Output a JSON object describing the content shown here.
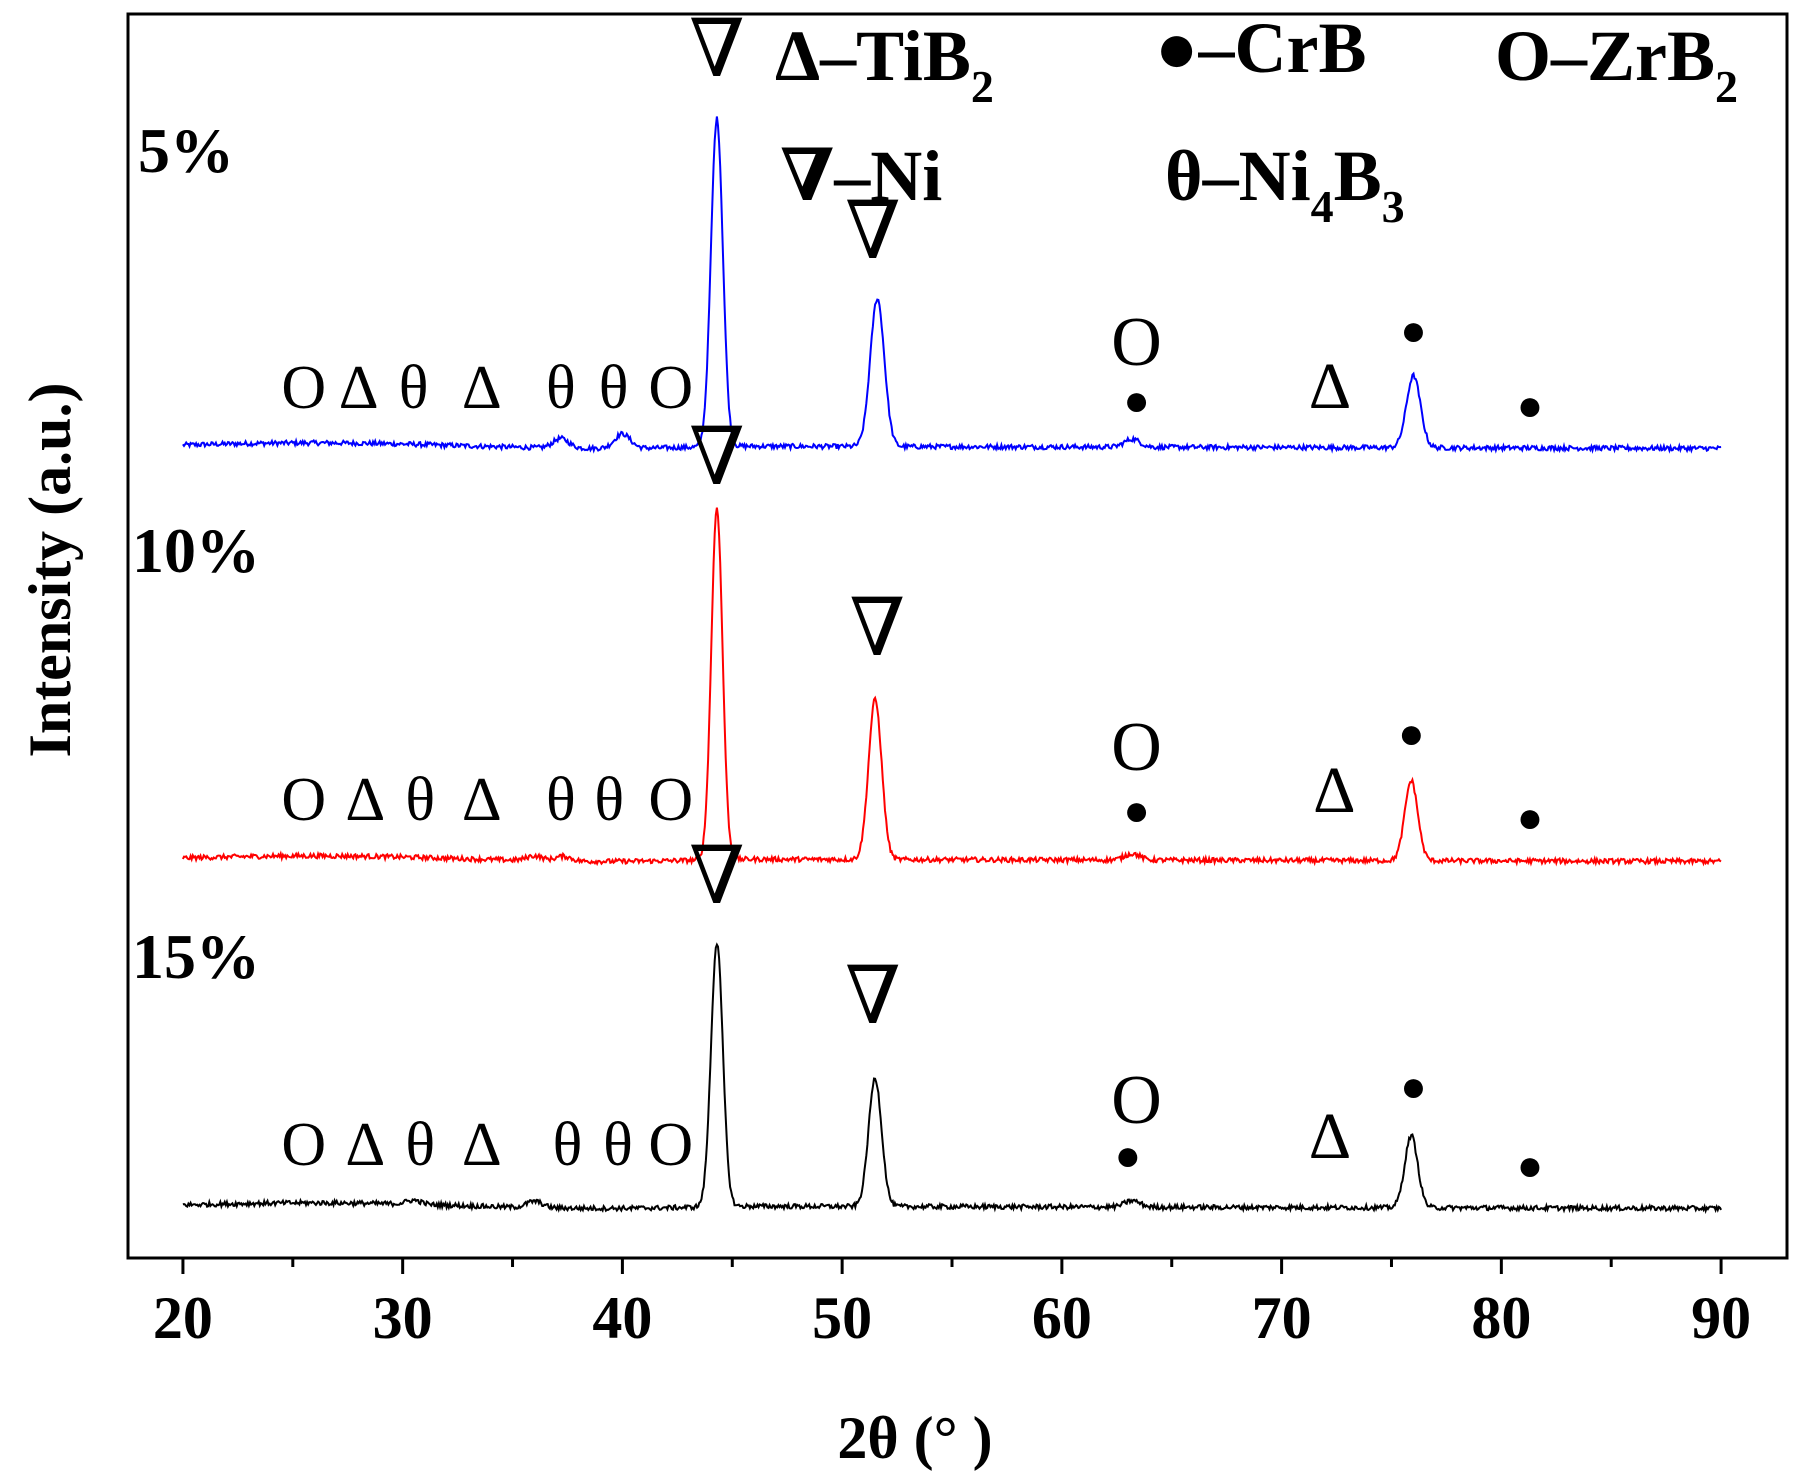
{
  "chart_data": {
    "type": "line",
    "xlabel": "2θ (° )",
    "ylabel": "Intensity (a.u.)",
    "xlim": [
      17.5,
      93
    ],
    "xticks": [
      20,
      30,
      40,
      50,
      60,
      70,
      80,
      90
    ],
    "xtick_labels": [
      "20",
      "30",
      "40",
      "50",
      "60",
      "70",
      "80",
      "90"
    ],
    "y_ticks_shown": false,
    "grid": false,
    "colors": {
      "5%": "#0000ff",
      "10%": "#ff0000",
      "15%": "#000000"
    },
    "legend": {
      "placement": "top-right",
      "entries": [
        {
          "symbol": "Δ",
          "label": "–TiB",
          "sub": "2"
        },
        {
          "symbol": "●",
          "label": "–CrB",
          "sub": ""
        },
        {
          "symbol": "O",
          "label": "–ZrB",
          "sub": "2"
        },
        {
          "symbol": "∇",
          "label": "–Ni",
          "sub": ""
        },
        {
          "symbol": "θ",
          "label": "–Ni",
          "sub": "4",
          "label2": "B",
          "sub2": "3"
        }
      ]
    },
    "series": [
      {
        "name": "5%",
        "color": "#0000ff",
        "baseline": 0,
        "peaks": [
          {
            "x": 37.2,
            "h": 0.012,
            "w": 0.5
          },
          {
            "x": 40.0,
            "h": 0.018,
            "w": 0.5
          },
          {
            "x": 44.3,
            "h": 0.41,
            "w": 0.38
          },
          {
            "x": 51.6,
            "h": 0.185,
            "w": 0.45
          },
          {
            "x": 63.2,
            "h": 0.01,
            "w": 0.5
          },
          {
            "x": 76.0,
            "h": 0.09,
            "w": 0.45
          }
        ],
        "markers": [
          {
            "x": 25.5,
            "symbol": "O"
          },
          {
            "x": 28.0,
            "symbol": "Δ"
          },
          {
            "x": 30.5,
            "symbol": "θ"
          },
          {
            "x": 33.6,
            "symbol": "Δ"
          },
          {
            "x": 37.2,
            "symbol": "θ"
          },
          {
            "x": 39.6,
            "symbol": "θ"
          },
          {
            "x": 42.2,
            "symbol": "O"
          },
          {
            "x": 44.3,
            "symbol": "∇"
          },
          {
            "x": 51.4,
            "symbol": "∇"
          },
          {
            "x": 63.4,
            "symbol": "O"
          },
          {
            "x": 63.4,
            "symbol": "●"
          },
          {
            "x": 72.2,
            "symbol": "Δ"
          },
          {
            "x": 76.0,
            "symbol": "●"
          },
          {
            "x": 81.3,
            "symbol": "●"
          }
        ]
      },
      {
        "name": "10%",
        "color": "#ff0000",
        "baseline": -0.5,
        "peaks": [
          {
            "x": 36.0,
            "h": 0.006,
            "w": 0.5
          },
          {
            "x": 37.3,
            "h": 0.006,
            "w": 0.5
          },
          {
            "x": 44.3,
            "h": 0.44,
            "w": 0.36
          },
          {
            "x": 51.5,
            "h": 0.2,
            "w": 0.42
          },
          {
            "x": 63.2,
            "h": 0.008,
            "w": 0.5
          },
          {
            "x": 75.9,
            "h": 0.1,
            "w": 0.42
          }
        ],
        "markers": [
          {
            "x": 25.5,
            "symbol": "O"
          },
          {
            "x": 28.3,
            "symbol": "Δ"
          },
          {
            "x": 30.8,
            "symbol": "θ"
          },
          {
            "x": 33.6,
            "symbol": "Δ"
          },
          {
            "x": 37.2,
            "symbol": "θ"
          },
          {
            "x": 39.4,
            "symbol": "θ"
          },
          {
            "x": 42.2,
            "symbol": "O"
          },
          {
            "x": 44.3,
            "symbol": "∇"
          },
          {
            "x": 51.6,
            "symbol": "∇"
          },
          {
            "x": 63.4,
            "symbol": "O"
          },
          {
            "x": 63.4,
            "symbol": "●"
          },
          {
            "x": 72.4,
            "symbol": "Δ"
          },
          {
            "x": 75.9,
            "symbol": "●"
          },
          {
            "x": 81.3,
            "symbol": "●"
          }
        ]
      },
      {
        "name": "15%",
        "color": "#000000",
        "baseline": -1.0,
        "peaks": [
          {
            "x": 30.5,
            "h": 0.005,
            "w": 0.5
          },
          {
            "x": 36.0,
            "h": 0.008,
            "w": 0.5
          },
          {
            "x": 44.3,
            "h": 0.33,
            "w": 0.38
          },
          {
            "x": 51.5,
            "h": 0.16,
            "w": 0.42
          },
          {
            "x": 63.2,
            "h": 0.008,
            "w": 0.5
          },
          {
            "x": 75.9,
            "h": 0.09,
            "w": 0.42
          }
        ],
        "markers": [
          {
            "x": 25.5,
            "symbol": "O"
          },
          {
            "x": 28.3,
            "symbol": "Δ"
          },
          {
            "x": 30.8,
            "symbol": "θ"
          },
          {
            "x": 33.6,
            "symbol": "Δ"
          },
          {
            "x": 37.5,
            "symbol": "θ"
          },
          {
            "x": 39.8,
            "symbol": "θ"
          },
          {
            "x": 42.2,
            "symbol": "O"
          },
          {
            "x": 44.3,
            "symbol": "∇"
          },
          {
            "x": 51.4,
            "symbol": "∇"
          },
          {
            "x": 63.4,
            "symbol": "O"
          },
          {
            "x": 63.0,
            "symbol": "●"
          },
          {
            "x": 72.2,
            "symbol": "Δ"
          },
          {
            "x": 76.0,
            "symbol": "●"
          },
          {
            "x": 81.3,
            "symbol": "●"
          }
        ]
      }
    ]
  }
}
